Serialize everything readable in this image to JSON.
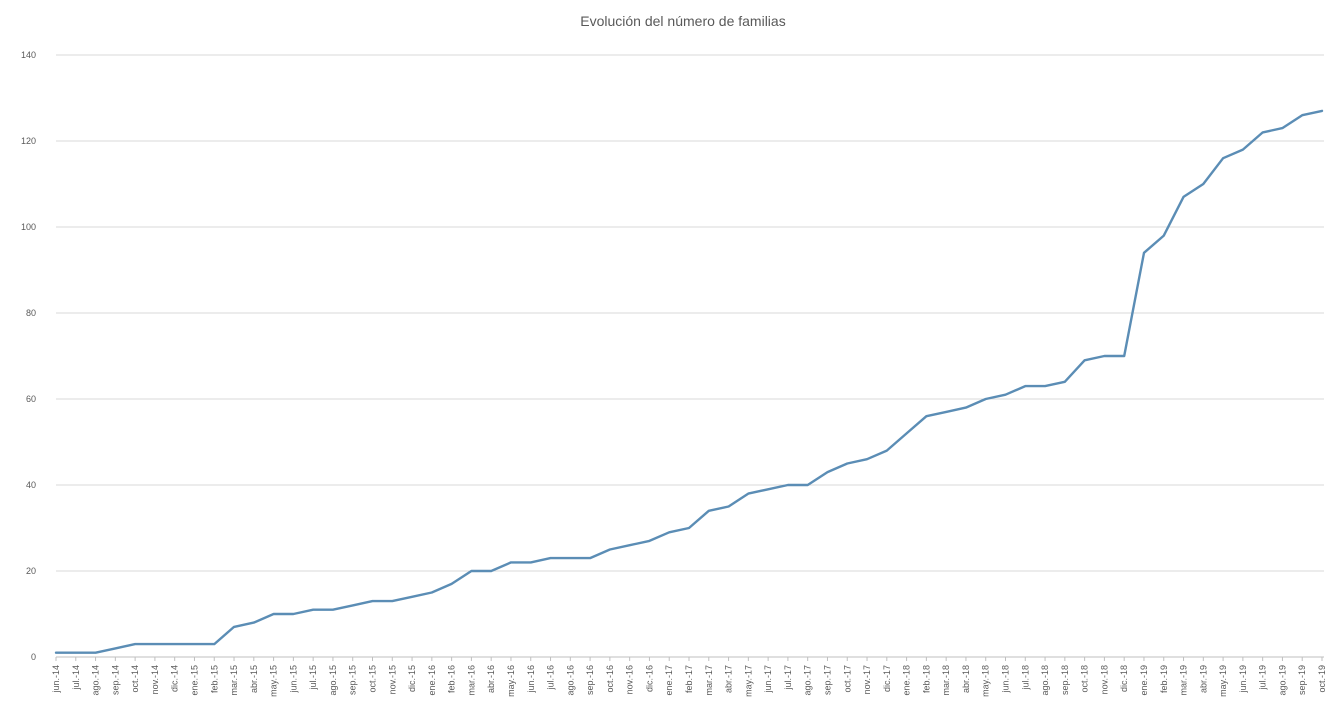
{
  "chart_data": {
    "type": "line",
    "title": "Evolución del número de familias",
    "xlabel": "",
    "ylabel": "",
    "ylim": [
      0,
      140
    ],
    "yticks": [
      0,
      20,
      40,
      60,
      80,
      100,
      120,
      140
    ],
    "grid": true,
    "legend": "none",
    "color": "#5b8db5",
    "categories": [
      "jun.-14",
      "jul.-14",
      "ago.-14",
      "sep.-14",
      "oct.-14",
      "nov.-14",
      "dic.-14",
      "ene.-15",
      "feb.-15",
      "mar.-15",
      "abr.-15",
      "may.-15",
      "jun.-15",
      "jul.-15",
      "ago.-15",
      "sep.-15",
      "oct.-15",
      "nov.-15",
      "dic.-15",
      "ene.-16",
      "feb.-16",
      "mar.-16",
      "abr.-16",
      "may.-16",
      "jun.-16",
      "jul.-16",
      "ago.-16",
      "sep.-16",
      "oct.-16",
      "nov.-16",
      "dic.-16",
      "ene.-17",
      "feb.-17",
      "mar.-17",
      "abr.-17",
      "may.-17",
      "jun.-17",
      "jul.-17",
      "ago.-17",
      "sep.-17",
      "oct.-17",
      "nov.-17",
      "dic.-17",
      "ene.-18",
      "feb.-18",
      "mar.-18",
      "abr.-18",
      "may.-18",
      "jun.-18",
      "jul.-18",
      "ago.-18",
      "sep.-18",
      "oct.-18",
      "nov.-18",
      "dic.-18",
      "ene.-19",
      "feb.-19",
      "mar.-19",
      "abr.-19",
      "may.-19",
      "jun.-19",
      "jul.-19",
      "ago.-19",
      "sep.-19",
      "oct.-19"
    ],
    "series": [
      {
        "values": [
          1,
          1,
          1,
          2,
          3,
          3,
          3,
          3,
          3,
          7,
          8,
          10,
          10,
          11,
          11,
          12,
          13,
          13,
          14,
          15,
          17,
          20,
          20,
          22,
          22,
          23,
          23,
          23,
          25,
          26,
          27,
          29,
          30,
          34,
          35,
          38,
          39,
          40,
          40,
          43,
          45,
          46,
          48,
          52,
          56,
          57,
          58,
          60,
          61,
          63,
          63,
          64,
          69,
          70,
          70,
          94,
          98,
          107,
          110,
          116,
          118,
          122,
          123,
          126,
          127
        ]
      }
    ]
  }
}
